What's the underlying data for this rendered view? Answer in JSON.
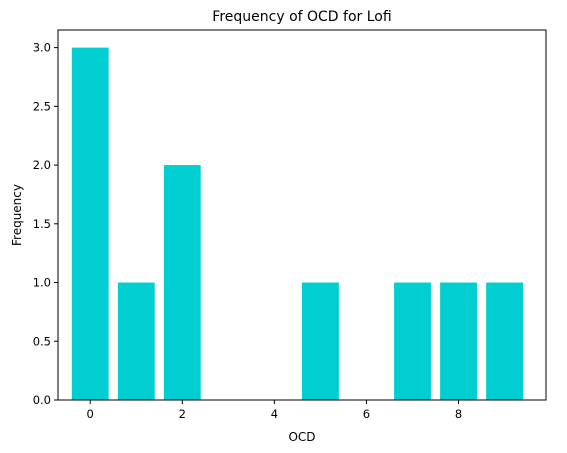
{
  "chart_data": {
    "type": "bar",
    "title": "Frequency of OCD for Lofi",
    "xlabel": "OCD",
    "ylabel": "Frequency",
    "x": [
      0,
      1,
      2,
      5,
      7,
      8,
      9
    ],
    "values": [
      3,
      1,
      2,
      1,
      1,
      1,
      1
    ],
    "bar_width": 0.8,
    "bar_color": "#00CED1",
    "xlim": [
      -0.7,
      9.9
    ],
    "ylim": [
      0,
      3.15
    ],
    "xticks": [
      0,
      2,
      4,
      6,
      8
    ],
    "xtick_labels": [
      "0",
      "2",
      "4",
      "6",
      "8"
    ],
    "yticks": [
      0,
      0.5,
      1,
      1.5,
      2,
      2.5,
      3
    ],
    "ytick_labels": [
      "0.0",
      "0.5",
      "1.0",
      "1.5",
      "2.0",
      "2.5",
      "3.0"
    ],
    "grid": false,
    "legend": "none"
  }
}
